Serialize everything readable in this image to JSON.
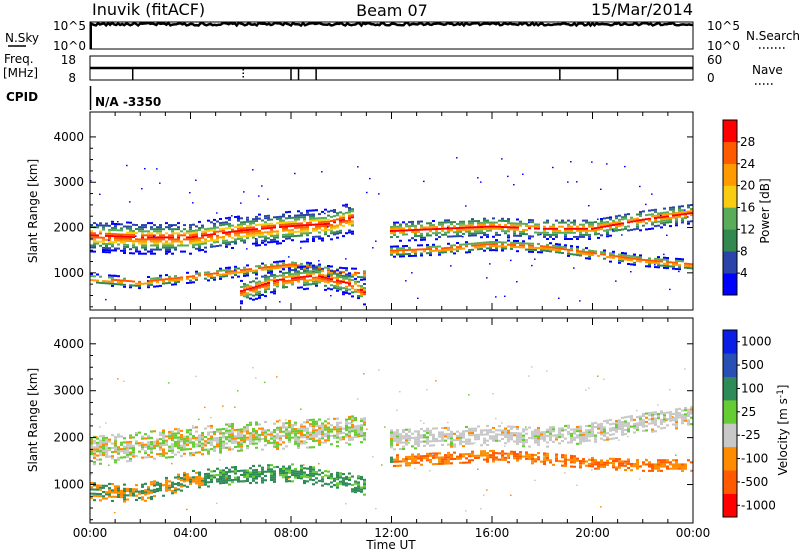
{
  "header": {
    "station": "Inuvik (fitACF)",
    "beam": "Beam 07",
    "date": "15/Mar/2014"
  },
  "params": {
    "nsky_label": "N.Sky",
    "nsearch_label": "N.Search",
    "freq_label_1": "Freq.",
    "freq_label_2": "[MHz]",
    "nave_label": "Nave",
    "cpid_label": "CPID",
    "cpid_value": "N/A -3350",
    "noise_ticks_left": [
      "10^5",
      "10^0"
    ],
    "noise_ticks_right": [
      "10^5",
      "10^0"
    ],
    "freq_ticks_left": [
      "18",
      "8"
    ],
    "nave_ticks_right": [
      "60",
      "0"
    ],
    "noise_ylim": [
      0,
      5
    ],
    "noise_level": 4.6,
    "freq_change_hours": [
      1.7,
      8.0,
      8.3,
      9.0,
      18.7,
      21.0
    ]
  },
  "colors": {
    "power": [
      "#0000ff",
      "#2a44aa",
      "#33884f",
      "#5aac5a",
      "#f8cc10",
      "#ff9a00",
      "#ff5a00",
      "#ff0000"
    ],
    "velocity": [
      "#ff0000",
      "#ff5a00",
      "#ff8c00",
      "#c8c8c8",
      "#66cc33",
      "#2e8b57",
      "#2850b4",
      "#0a1ee6"
    ],
    "ground_scatter": "#7a7a7a"
  },
  "chart_data": [
    {
      "type": "heatmap",
      "title": "Power",
      "xlabel": "Time UT",
      "ylabel": "Slant Range [km]",
      "x_ticks": [
        "00:00",
        "04:00",
        "08:00",
        "12:00",
        "16:00",
        "20:00",
        "00:00"
      ],
      "xlim_hours": [
        0,
        24
      ],
      "y_ticks": [
        "1000",
        "2000",
        "3000",
        "4000"
      ],
      "ylim_km": [
        180,
        4550
      ],
      "colorbar": {
        "label": "Power [dB]",
        "ticks": [
          "4",
          "8",
          "12",
          "16",
          "20",
          "24",
          "28"
        ],
        "range_db": [
          0,
          32
        ]
      },
      "bands": [
        {
          "h": [
            0.0,
            2.0,
            4.0,
            6.0,
            8.0,
            10.0,
            11.0
          ],
          "center_km": [
            850,
            760,
            880,
            1020,
            1150,
            980,
            950
          ],
          "width_km": 240
        },
        {
          "h": [
            0.0,
            2.0,
            4.0,
            6.0,
            8.0,
            9.5,
            10.5
          ],
          "center_km": [
            1800,
            1750,
            1750,
            1900,
            2000,
            2050,
            2200
          ],
          "width_km": 700
        },
        {
          "h": [
            6.0,
            7.5,
            9.0,
            10.5,
            11.0
          ],
          "center_km": [
            550,
            800,
            900,
            700,
            500
          ],
          "width_km": 500
        },
        {
          "h": [
            12.0,
            14.0,
            16.0,
            18.0,
            20.0,
            22.0,
            24.0
          ],
          "center_km": [
            1450,
            1500,
            1600,
            1550,
            1400,
            1250,
            1150
          ],
          "width_km": 240
        },
        {
          "h": [
            12.0,
            14.0,
            16.0,
            18.0,
            20.0,
            22.0,
            24.0
          ],
          "center_km": [
            1900,
            1950,
            2000,
            1950,
            1950,
            2150,
            2300
          ],
          "width_km": 450
        }
      ]
    },
    {
      "type": "heatmap",
      "title": "Velocity",
      "xlabel": "Time UT",
      "ylabel": "Slant Range [km]",
      "x_ticks": [
        "00:00",
        "04:00",
        "08:00",
        "12:00",
        "16:00",
        "20:00",
        "00:00"
      ],
      "xlim_hours": [
        0,
        24
      ],
      "y_ticks": [
        "1000",
        "2000",
        "3000",
        "4000"
      ],
      "ylim_km": [
        180,
        4550
      ],
      "colorbar": {
        "label": "Velocity [m s^-1]",
        "ticks": [
          "1000",
          "500",
          "100",
          "25",
          "-25",
          "-100",
          "-500",
          "-1000"
        ]
      },
      "bands": [
        {
          "h": [
            0.0,
            2.0,
            4.0,
            6.0,
            8.0,
            10.0,
            11.0
          ],
          "center_km": [
            850,
            800,
            1100,
            1200,
            1250,
            1100,
            950
          ],
          "width_km": 400
        },
        {
          "h": [
            0.0,
            2.0,
            4.0,
            6.0,
            8.0,
            10.0,
            11.0
          ],
          "center_km": [
            1700,
            1800,
            1900,
            2000,
            2050,
            2100,
            2200
          ],
          "width_km": 600
        },
        {
          "h": [
            12.0,
            14.0,
            16.0,
            18.0,
            20.0,
            22.0,
            24.0
          ],
          "center_km": [
            1500,
            1550,
            1600,
            1550,
            1450,
            1400,
            1400
          ],
          "width_km": 260
        },
        {
          "h": [
            12.0,
            14.0,
            16.0,
            18.0,
            20.0,
            22.0,
            24.0
          ],
          "center_km": [
            1950,
            2000,
            2050,
            2000,
            2100,
            2300,
            2450
          ],
          "width_km": 450
        }
      ]
    }
  ]
}
